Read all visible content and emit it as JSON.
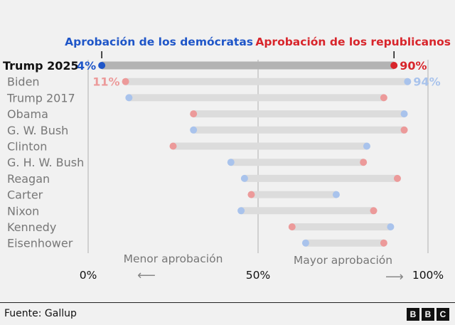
{
  "chart_data": {
    "type": "dumbbell",
    "legend": {
      "dem_label": "Aprobación de los demócratas",
      "rep_label": "Aprobación de los republicanos"
    },
    "categories": [
      "Trump 2025",
      "Biden",
      "Trump 2017",
      "Obama",
      "G. W. Bush",
      "Clinton",
      "G. H. W. Bush",
      "Reagan",
      "Carter",
      "Nixon",
      "Kennedy",
      "Eisenhower"
    ],
    "series": [
      {
        "name": "Aprobación de los demócratas",
        "values": [
          4,
          94,
          12,
          93,
          31,
          82,
          42,
          46,
          73,
          45,
          89,
          64
        ]
      },
      {
        "name": "Aprobación de los republicanos",
        "values": [
          90,
          11,
          87,
          31,
          93,
          25,
          81,
          91,
          48,
          84,
          60,
          87
        ]
      }
    ],
    "data_labels": {
      "trump_2025_dem": "4%",
      "trump_2025_rep": "90%",
      "biden_rep": "11%",
      "biden_dem": "94%"
    },
    "xlim": [
      0,
      100
    ],
    "x_ticks": [
      "0%",
      "50%",
      "100%"
    ],
    "x_annotations": {
      "left": "Menor aprobación",
      "right": "Mayor aprobación"
    },
    "colors": {
      "dem": "#1f56c8",
      "rep": "#d8252b",
      "dem_light": "#a9c3ec",
      "rep_light": "#ec9a9a",
      "bar_highlight": "#b3b3b3",
      "bar": "#dcdcdc"
    }
  },
  "source": "Fuente: Gallup",
  "logo": [
    "B",
    "B",
    "C"
  ]
}
